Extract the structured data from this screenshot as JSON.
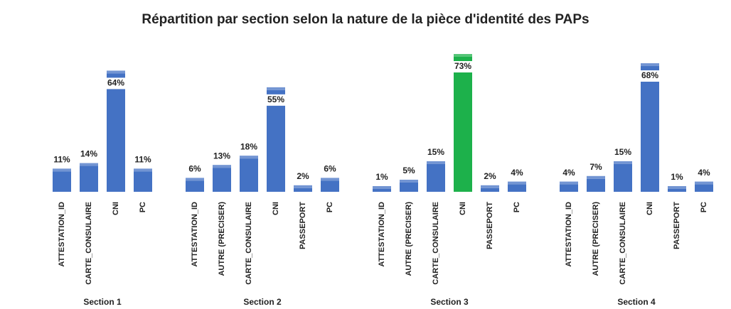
{
  "chart_data": {
    "type": "bar",
    "title": "Répartition par section selon la nature de la pièce d'identité des PAPs",
    "groups": [
      {
        "name": "Section 1",
        "categories": [
          "ATTESTATION_ID",
          "CARTE_CONSULAIRE",
          "CNI",
          "PC"
        ],
        "values": [
          11,
          14,
          64,
          11
        ],
        "value_labels": [
          "11%",
          "14%",
          "64%",
          "11%"
        ],
        "colors": [
          "#4472c4",
          "#4472c4",
          "#4472c4",
          "#4472c4"
        ]
      },
      {
        "name": "Section 2",
        "categories": [
          "ATTESTATION_ID",
          "AUTRE (PRECISER)",
          "CARTE_CONSULAIRE",
          "CNI",
          "PASSEPORT",
          "PC"
        ],
        "values": [
          6,
          13,
          18,
          55,
          2,
          6
        ],
        "value_labels": [
          "6%",
          "13%",
          "18%",
          "55%",
          "2%",
          "6%"
        ],
        "colors": [
          "#4472c4",
          "#4472c4",
          "#4472c4",
          "#4472c4",
          "#4472c4",
          "#4472c4"
        ]
      },
      {
        "name": "Section 3",
        "categories": [
          "ATTESTATION_ID",
          "AUTRE (PRECISER)",
          "CARTE_CONSULAIRE",
          "CNI",
          "PASSEPORT",
          "PC"
        ],
        "values": [
          1,
          5,
          15,
          73,
          2,
          4
        ],
        "value_labels": [
          "1%",
          "5%",
          "15%",
          "73%",
          "2%",
          "4%"
        ],
        "colors": [
          "#4472c4",
          "#4472c4",
          "#4472c4",
          "#1db14b",
          "#4472c4",
          "#4472c4"
        ]
      },
      {
        "name": "Section 4",
        "categories": [
          "ATTESTATION_ID",
          "AUTRE (PRECISER)",
          "CARTE_CONSULAIRE",
          "CNI",
          "PASSEPORT",
          "PC"
        ],
        "values": [
          4,
          7,
          15,
          68,
          1,
          4
        ],
        "value_labels": [
          "4%",
          "7%",
          "15%",
          "68%",
          "1%",
          "4%"
        ],
        "colors": [
          "#4472c4",
          "#4472c4",
          "#4472c4",
          "#4472c4",
          "#4472c4",
          "#4472c4"
        ]
      }
    ]
  }
}
